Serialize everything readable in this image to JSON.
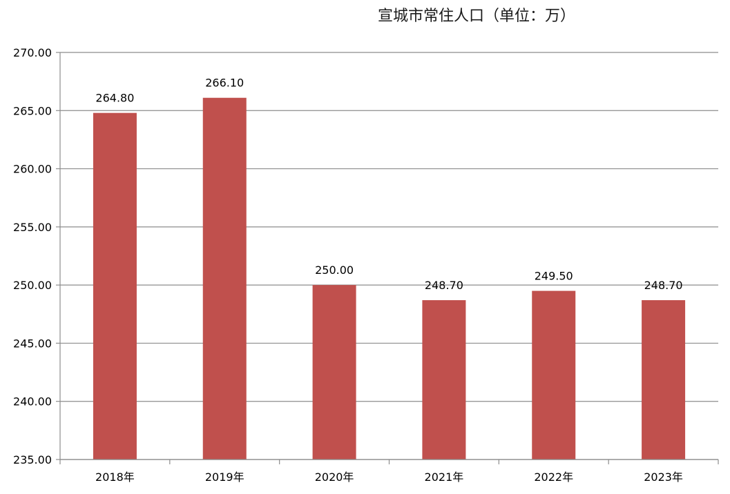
{
  "chart_data": {
    "type": "bar",
    "title": "宣城市常住人口（单位：万）",
    "xlabel": "",
    "ylabel": "",
    "categories": [
      "2018年",
      "2019年",
      "2020年",
      "2021年",
      "2022年",
      "2023年"
    ],
    "values": [
      264.8,
      266.1,
      250.0,
      248.7,
      249.5,
      248.7
    ],
    "data_labels": [
      "264.80",
      "266.10",
      "250.00",
      "248.70",
      "249.50",
      "248.70"
    ],
    "ylim": [
      235,
      270
    ],
    "yticks": [
      235,
      240,
      245,
      250,
      255,
      260,
      265,
      270
    ],
    "ytick_labels": [
      "235.00",
      "240.00",
      "245.00",
      "250.00",
      "255.00",
      "260.00",
      "265.00",
      "270.00"
    ],
    "grid": true,
    "legend": "none",
    "colors": {
      "bar": "#c0504d",
      "grid": "#8c8c8c",
      "axis": "#8c8c8c"
    }
  }
}
